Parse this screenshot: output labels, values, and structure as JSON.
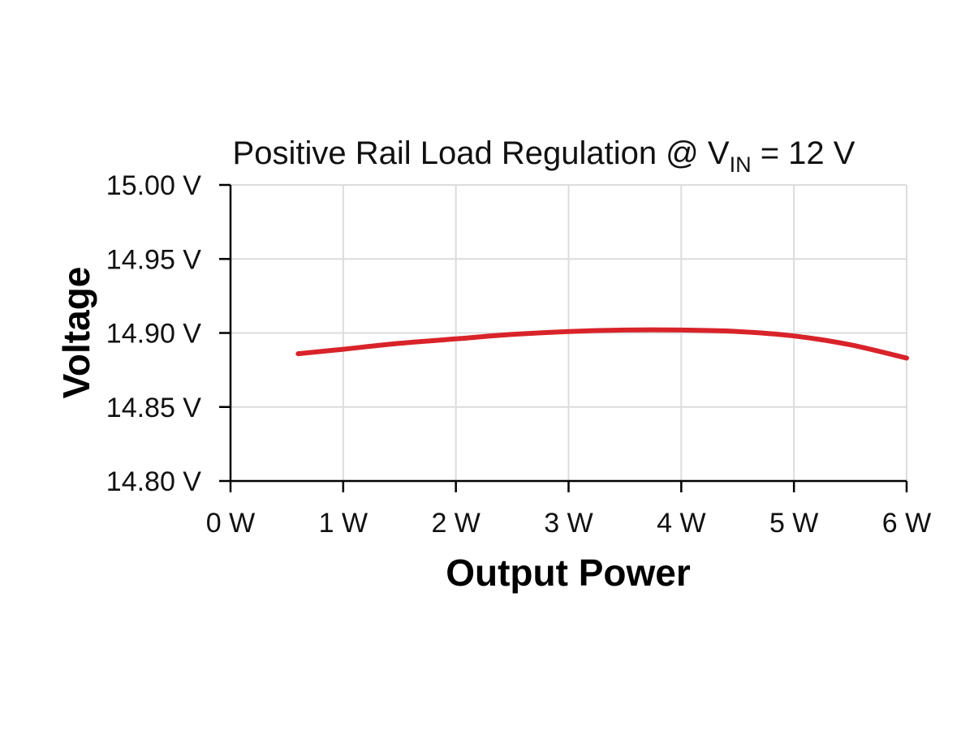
{
  "chart_data": {
    "type": "line",
    "title": {
      "prefix": "Positive Rail Load Regulation @ V",
      "subscript": "IN",
      "suffix": " = 12 V"
    },
    "xlabel": "Output Power",
    "ylabel": "Voltage",
    "xlim": [
      0,
      6
    ],
    "ylim": [
      14.8,
      15.0
    ],
    "x_ticks": [
      0,
      1,
      2,
      3,
      4,
      5,
      6
    ],
    "x_tick_labels": [
      "0 W",
      "1 W",
      "2 W",
      "3 W",
      "4 W",
      "5 W",
      "6 W"
    ],
    "y_ticks": [
      14.8,
      14.85,
      14.9,
      14.95,
      15.0
    ],
    "y_tick_labels": [
      "14.80 V",
      "14.85 V",
      "14.90 V",
      "14.95 V",
      "15.00 V"
    ],
    "grid": true,
    "series": [
      {
        "color": "#d9232a",
        "x": [
          0.6,
          1.0,
          1.5,
          2.0,
          2.5,
          3.0,
          3.5,
          4.0,
          4.5,
          5.0,
          5.5,
          6.0
        ],
        "y": [
          14.886,
          14.889,
          14.893,
          14.896,
          14.899,
          14.901,
          14.902,
          14.902,
          14.901,
          14.898,
          14.892,
          14.883
        ]
      }
    ]
  }
}
